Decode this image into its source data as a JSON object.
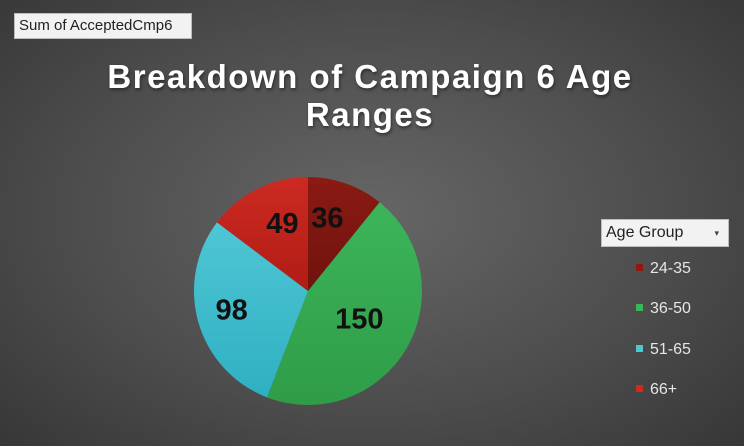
{
  "field_button": {
    "label": "Sum of AcceptedCmp6"
  },
  "legend": {
    "header": "Age Group",
    "dropdown_icon": "chevron-down-icon"
  },
  "chart_data": {
    "type": "pie",
    "title": "Breakdown of Campaign 6 Age Ranges",
    "slices": [
      {
        "label": "24-35",
        "value": 36,
        "color": "#8b1a13",
        "gradient": "#6f130d"
      },
      {
        "label": "36-50",
        "value": 150,
        "color": "#3cb55a",
        "gradient": "#2f9c48"
      },
      {
        "label": "51-65",
        "value": 98,
        "color": "#4fc6d4",
        "gradient": "#2fb0c2"
      },
      {
        "label": "66+",
        "value": 49,
        "color": "#cc2a22",
        "gradient": "#b01c15"
      }
    ],
    "data_labels": true,
    "legend_position": "right"
  }
}
